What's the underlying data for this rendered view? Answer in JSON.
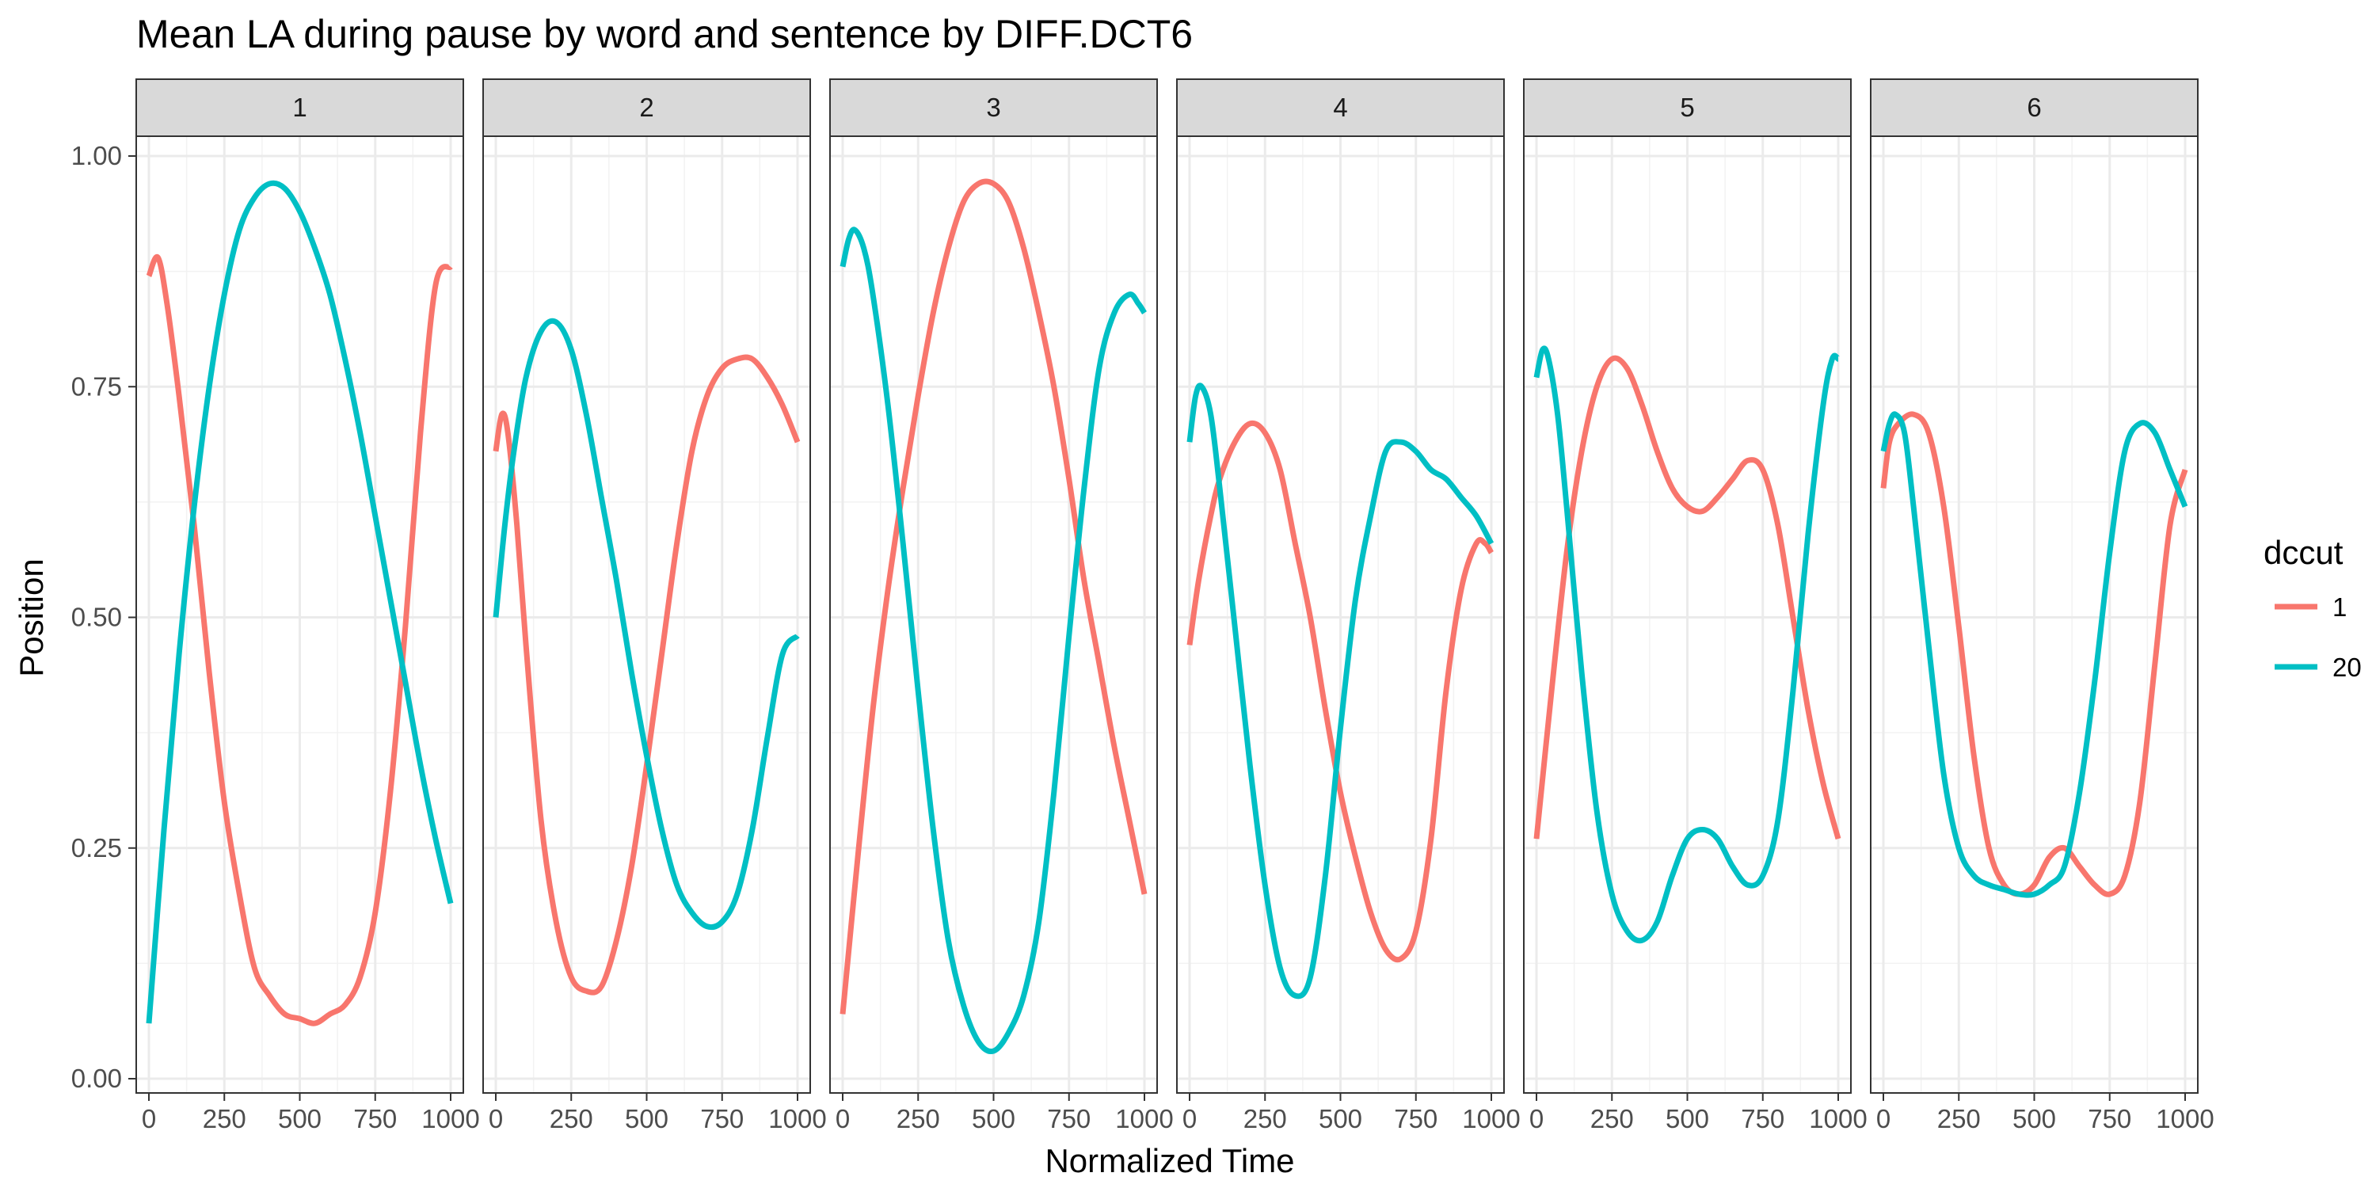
{
  "chart_data": {
    "type": "line",
    "title": "Mean LA during pause by word and sentence by DIFF.DCT6",
    "xlabel": "Normalized Time",
    "ylabel": "Position",
    "xlim": [
      0,
      1000
    ],
    "ylim": [
      0,
      1
    ],
    "x_ticks": [
      0,
      250,
      500,
      750,
      1000
    ],
    "x_tick_labels": [
      "0",
      "250",
      "500",
      "750",
      "1000"
    ],
    "y_ticks": [
      0,
      0.25,
      0.5,
      0.75,
      1.0
    ],
    "y_tick_labels": [
      "0.00",
      "0.25",
      "0.50",
      "0.75",
      "1.00"
    ],
    "grid": true,
    "legend": {
      "title": "dccut",
      "placement": "right",
      "entries": [
        {
          "label": "1",
          "color": "#F8766D"
        },
        {
          "label": "20",
          "color": "#00BFC4"
        }
      ]
    },
    "panels": [
      {
        "label": "1",
        "series": [
          {
            "name": "1",
            "color": "#F8766D",
            "x": [
              0,
              30,
              60,
              100,
              150,
              200,
              250,
              300,
              350,
              400,
              450,
              500,
              550,
              600,
              650,
              700,
              750,
              800,
              850,
              900,
              950,
              1000
            ],
            "y": [
              0.87,
              0.89,
              0.84,
              0.74,
              0.6,
              0.44,
              0.3,
              0.2,
              0.12,
              0.09,
              0.07,
              0.065,
              0.06,
              0.07,
              0.08,
              0.11,
              0.18,
              0.31,
              0.49,
              0.7,
              0.86,
              0.88
            ]
          },
          {
            "name": "20",
            "color": "#00BFC4",
            "x": [
              0,
              50,
              100,
              150,
              200,
              250,
              300,
              350,
              400,
              450,
              500,
              550,
              600,
              650,
              700,
              750,
              800,
              850,
              900,
              950,
              1000
            ],
            "y": [
              0.06,
              0.27,
              0.46,
              0.62,
              0.75,
              0.85,
              0.92,
              0.955,
              0.97,
              0.965,
              0.94,
              0.9,
              0.85,
              0.78,
              0.7,
              0.61,
              0.52,
              0.43,
              0.34,
              0.26,
              0.19
            ]
          }
        ]
      },
      {
        "label": "2",
        "series": [
          {
            "name": "1",
            "color": "#F8766D",
            "x": [
              0,
              20,
              40,
              70,
              100,
              150,
              200,
              250,
              300,
              350,
              400,
              450,
              500,
              550,
              600,
              650,
              700,
              750,
              800,
              850,
              900,
              950,
              1000
            ],
            "y": [
              0.68,
              0.72,
              0.7,
              0.6,
              0.47,
              0.28,
              0.17,
              0.11,
              0.095,
              0.1,
              0.15,
              0.23,
              0.34,
              0.46,
              0.58,
              0.68,
              0.74,
              0.77,
              0.78,
              0.78,
              0.76,
              0.73,
              0.69
            ]
          },
          {
            "name": "20",
            "color": "#00BFC4",
            "x": [
              0,
              30,
              60,
              100,
              150,
              200,
              250,
              300,
              350,
              400,
              450,
              500,
              550,
              600,
              650,
              700,
              750,
              800,
              850,
              900,
              950,
              1000
            ],
            "y": [
              0.5,
              0.6,
              0.68,
              0.76,
              0.81,
              0.82,
              0.79,
              0.72,
              0.63,
              0.54,
              0.44,
              0.35,
              0.27,
              0.21,
              0.18,
              0.165,
              0.17,
              0.2,
              0.27,
              0.37,
              0.46,
              0.48
            ]
          }
        ]
      },
      {
        "label": "3",
        "series": [
          {
            "name": "1",
            "color": "#F8766D",
            "x": [
              0,
              50,
              100,
              150,
              200,
              250,
              300,
              350,
              400,
              450,
              500,
              550,
              600,
              650,
              700,
              750,
              800,
              850,
              900,
              950,
              1000
            ],
            "y": [
              0.07,
              0.24,
              0.4,
              0.53,
              0.64,
              0.74,
              0.83,
              0.9,
              0.95,
              0.97,
              0.97,
              0.95,
              0.9,
              0.83,
              0.75,
              0.65,
              0.54,
              0.45,
              0.36,
              0.28,
              0.2
            ]
          },
          {
            "name": "20",
            "color": "#00BFC4",
            "x": [
              0,
              20,
              40,
              70,
              100,
              150,
              200,
              250,
              300,
              350,
              400,
              450,
              500,
              550,
              600,
              650,
              700,
              750,
              800,
              850,
              900,
              950,
              980,
              1000
            ],
            "y": [
              0.88,
              0.91,
              0.92,
              0.9,
              0.85,
              0.73,
              0.58,
              0.42,
              0.27,
              0.15,
              0.08,
              0.04,
              0.03,
              0.05,
              0.09,
              0.17,
              0.31,
              0.48,
              0.64,
              0.77,
              0.83,
              0.85,
              0.84,
              0.83
            ]
          }
        ]
      },
      {
        "label": "4",
        "series": [
          {
            "name": "1",
            "color": "#F8766D",
            "x": [
              0,
              30,
              70,
              100,
              150,
              200,
              250,
              300,
              350,
              400,
              450,
              500,
              550,
              600,
              650,
              700,
              750,
              800,
              850,
              900,
              950,
              980,
              1000
            ],
            "y": [
              0.47,
              0.54,
              0.61,
              0.65,
              0.69,
              0.71,
              0.7,
              0.66,
              0.58,
              0.5,
              0.4,
              0.31,
              0.24,
              0.18,
              0.14,
              0.13,
              0.16,
              0.26,
              0.42,
              0.53,
              0.58,
              0.58,
              0.57
            ]
          },
          {
            "name": "20",
            "color": "#00BFC4",
            "x": [
              0,
              20,
              40,
              70,
              100,
              150,
              200,
              250,
              300,
              350,
              400,
              450,
              500,
              550,
              600,
              650,
              700,
              750,
              800,
              850,
              900,
              950,
              1000
            ],
            "y": [
              0.69,
              0.74,
              0.75,
              0.72,
              0.64,
              0.49,
              0.34,
              0.21,
              0.12,
              0.09,
              0.11,
              0.22,
              0.38,
              0.52,
              0.61,
              0.68,
              0.69,
              0.68,
              0.66,
              0.65,
              0.63,
              0.61,
              0.58
            ]
          }
        ]
      },
      {
        "label": "5",
        "series": [
          {
            "name": "1",
            "color": "#F8766D",
            "x": [
              0,
              50,
              100,
              150,
              200,
              250,
              300,
              350,
              400,
              450,
              500,
              550,
              600,
              650,
              700,
              750,
              800,
              850,
              900,
              950,
              1000
            ],
            "y": [
              0.26,
              0.42,
              0.57,
              0.68,
              0.75,
              0.78,
              0.77,
              0.73,
              0.68,
              0.64,
              0.62,
              0.615,
              0.63,
              0.65,
              0.67,
              0.66,
              0.6,
              0.5,
              0.4,
              0.32,
              0.26
            ]
          },
          {
            "name": "20",
            "color": "#00BFC4",
            "x": [
              0,
              20,
              40,
              70,
              100,
              150,
              200,
              250,
              300,
              350,
              400,
              450,
              500,
              550,
              600,
              650,
              700,
              750,
              800,
              850,
              900,
              950,
              980,
              1000
            ],
            "y": [
              0.76,
              0.79,
              0.78,
              0.72,
              0.62,
              0.44,
              0.29,
              0.2,
              0.16,
              0.15,
              0.17,
              0.22,
              0.26,
              0.27,
              0.26,
              0.23,
              0.21,
              0.22,
              0.28,
              0.42,
              0.59,
              0.73,
              0.78,
              0.78
            ]
          }
        ]
      },
      {
        "label": "6",
        "series": [
          {
            "name": "1",
            "color": "#F8766D",
            "x": [
              0,
              20,
              50,
              100,
              150,
              200,
              250,
              300,
              350,
              400,
              450,
              500,
              550,
              600,
              650,
              700,
              750,
              800,
              850,
              900,
              950,
              1000
            ],
            "y": [
              0.64,
              0.69,
              0.71,
              0.72,
              0.7,
              0.62,
              0.49,
              0.35,
              0.25,
              0.21,
              0.2,
              0.21,
              0.24,
              0.25,
              0.23,
              0.21,
              0.2,
              0.22,
              0.3,
              0.45,
              0.6,
              0.66
            ]
          },
          {
            "name": "20",
            "color": "#00BFC4",
            "x": [
              0,
              20,
              40,
              70,
              100,
              150,
              200,
              250,
              300,
              350,
              400,
              450,
              500,
              550,
              600,
              650,
              700,
              750,
              800,
              850,
              900,
              950,
              1000
            ],
            "y": [
              0.68,
              0.71,
              0.72,
              0.7,
              0.62,
              0.47,
              0.33,
              0.25,
              0.22,
              0.21,
              0.205,
              0.2,
              0.2,
              0.21,
              0.23,
              0.31,
              0.43,
              0.57,
              0.68,
              0.71,
              0.7,
              0.66,
              0.62
            ]
          }
        ]
      }
    ]
  }
}
